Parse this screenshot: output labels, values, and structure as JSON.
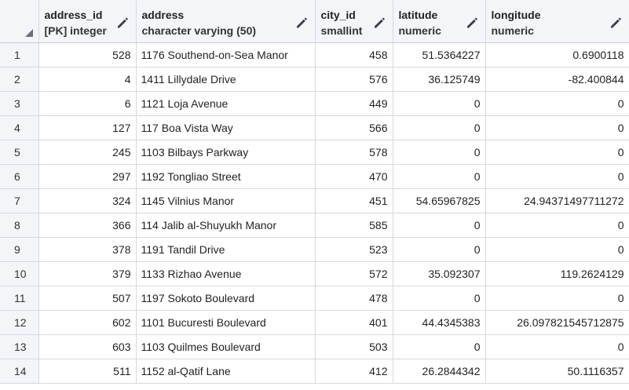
{
  "grid": {
    "columns": [
      {
        "name": "address_id",
        "type": "[PK] integer"
      },
      {
        "name": "address",
        "type": "character varying (50)"
      },
      {
        "name": "city_id",
        "type": "smallint"
      },
      {
        "name": "latitude",
        "type": "numeric"
      },
      {
        "name": "longitude",
        "type": "numeric"
      }
    ],
    "rows": [
      {
        "n": "1",
        "address_id": "528",
        "address": "1176 Southend-on-Sea Manor",
        "city_id": "458",
        "latitude": "51.5364227",
        "longitude": "0.6900118"
      },
      {
        "n": "2",
        "address_id": "4",
        "address": "1411 Lillydale Drive",
        "city_id": "576",
        "latitude": "36.125749",
        "longitude": "-82.400844"
      },
      {
        "n": "3",
        "address_id": "6",
        "address": "1121 Loja Avenue",
        "city_id": "449",
        "latitude": "0",
        "longitude": "0"
      },
      {
        "n": "4",
        "address_id": "127",
        "address": "117 Boa Vista Way",
        "city_id": "566",
        "latitude": "0",
        "longitude": "0"
      },
      {
        "n": "5",
        "address_id": "245",
        "address": "1103 Bilbays Parkway",
        "city_id": "578",
        "latitude": "0",
        "longitude": "0"
      },
      {
        "n": "6",
        "address_id": "297",
        "address": "1192 Tongliao Street",
        "city_id": "470",
        "latitude": "0",
        "longitude": "0"
      },
      {
        "n": "7",
        "address_id": "324",
        "address": "1145 Vilnius Manor",
        "city_id": "451",
        "latitude": "54.65967825",
        "longitude": "24.94371497711272"
      },
      {
        "n": "8",
        "address_id": "366",
        "address": "114 Jalib al-Shuyukh Manor",
        "city_id": "585",
        "latitude": "0",
        "longitude": "0"
      },
      {
        "n": "9",
        "address_id": "378",
        "address": "1191 Tandil Drive",
        "city_id": "523",
        "latitude": "0",
        "longitude": "0"
      },
      {
        "n": "10",
        "address_id": "379",
        "address": "1133 Rizhao Avenue",
        "city_id": "572",
        "latitude": "35.092307",
        "longitude": "119.2624129"
      },
      {
        "n": "11",
        "address_id": "507",
        "address": "1197 Sokoto Boulevard",
        "city_id": "478",
        "latitude": "0",
        "longitude": "0"
      },
      {
        "n": "12",
        "address_id": "602",
        "address": "1101 Bucuresti Boulevard",
        "city_id": "401",
        "latitude": "44.4345383",
        "longitude": "26.097821545712875"
      },
      {
        "n": "13",
        "address_id": "603",
        "address": "1103 Quilmes Boulevard",
        "city_id": "503",
        "latitude": "0",
        "longitude": "0"
      },
      {
        "n": "14",
        "address_id": "511",
        "address": "1152 al-Qatif Lane",
        "city_id": "412",
        "latitude": "26.2844342",
        "longitude": "50.1116357"
      }
    ]
  },
  "icons": {
    "edit": "pencil-icon",
    "select_all": "select-all-triangle-icon"
  },
  "colors": {
    "header_bg": "#f3f5f9",
    "grid_line": "#d5d9e0",
    "text": "#222222"
  }
}
